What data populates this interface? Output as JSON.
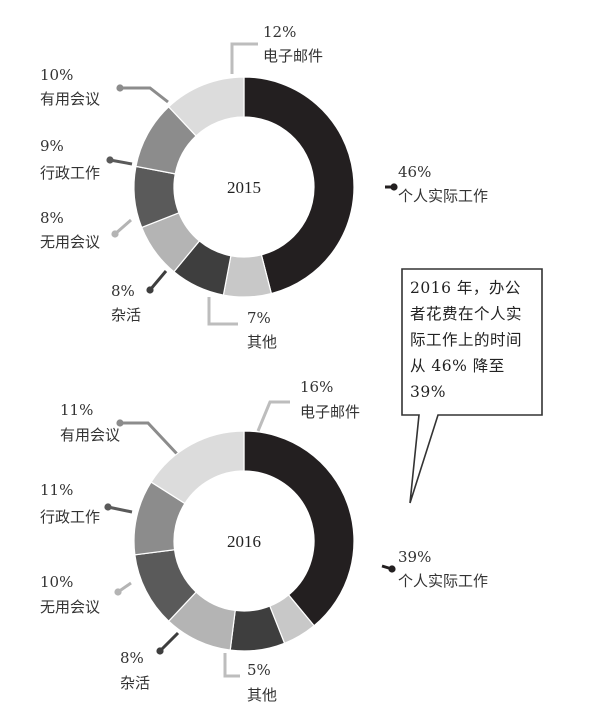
{
  "chart_data": [
    {
      "type": "pie",
      "center_label": "2015",
      "slices": [
        {
          "label": "个人实际工作",
          "pct": "46%",
          "value": 46,
          "color": "#231f20"
        },
        {
          "label": "其他",
          "pct": "7%",
          "value": 7,
          "color": "#c8c8c8"
        },
        {
          "label": "杂活",
          "pct": "8%",
          "value": 8,
          "color": "#3e3e3e"
        },
        {
          "label": "无用会议",
          "pct": "8%",
          "value": 8,
          "color": "#b4b4b4"
        },
        {
          "label": "行政工作",
          "pct": "9%",
          "value": 9,
          "color": "#5a5a5a"
        },
        {
          "label": "有用会议",
          "pct": "10%",
          "value": 10,
          "color": "#8c8c8c"
        },
        {
          "label": "电子邮件",
          "pct": "12%",
          "value": 12,
          "color": "#dcdcdc"
        }
      ]
    },
    {
      "type": "pie",
      "center_label": "2016",
      "slices": [
        {
          "label": "个人实际工作",
          "pct": "39%",
          "value": 39,
          "color": "#231f20"
        },
        {
          "label": "其他",
          "pct": "5%",
          "value": 5,
          "color": "#c8c8c8"
        },
        {
          "label": "杂活",
          "pct": "8%",
          "value": 8,
          "color": "#3e3e3e"
        },
        {
          "label": "无用会议",
          "pct": "10%",
          "value": 10,
          "color": "#b4b4b4"
        },
        {
          "label": "行政工作",
          "pct": "11%",
          "value": 11,
          "color": "#5a5a5a"
        },
        {
          "label": "有用会议",
          "pct": "11%",
          "value": 11,
          "color": "#8c8c8c"
        },
        {
          "label": "电子邮件",
          "pct": "16%",
          "value": 16,
          "color": "#dcdcdc"
        }
      ]
    }
  ],
  "callout": {
    "text": "2016 年，办公者花费在个人实际工作上的时间从 46% 降至 39%"
  }
}
